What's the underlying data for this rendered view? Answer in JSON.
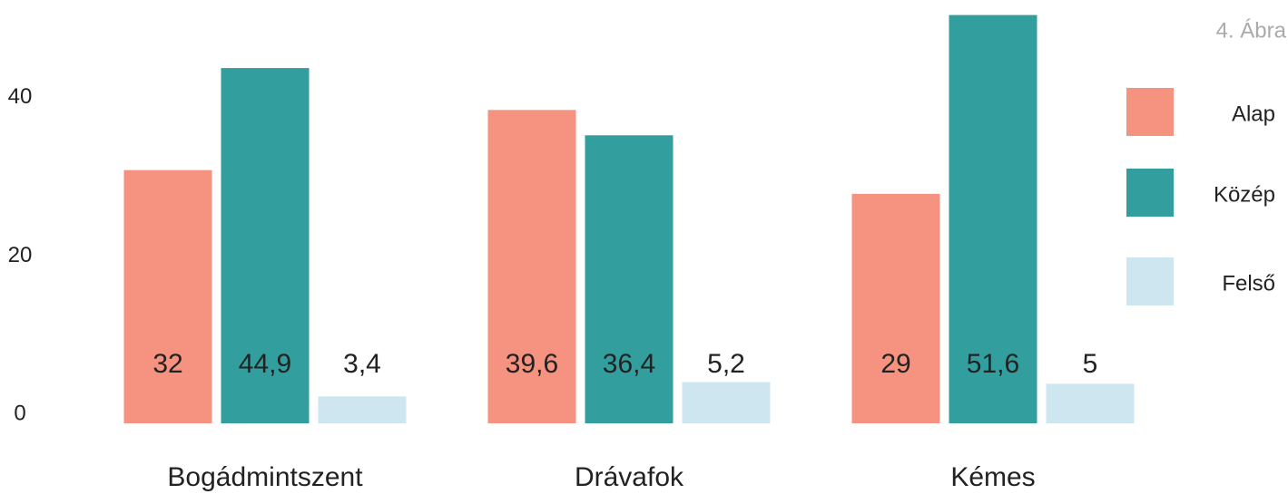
{
  "chart_data": {
    "type": "bar",
    "title": "4. Ábra",
    "categories": [
      "Bogádmintszent",
      "Drávafok",
      "Kémes"
    ],
    "series": [
      {
        "name": "Alap",
        "color": "#f59280",
        "values": [
          32,
          39.6,
          29
        ],
        "value_labels": [
          "32",
          "39,6",
          "29"
        ]
      },
      {
        "name": "Közép",
        "color": "#339e9e",
        "values": [
          44.9,
          36.4,
          51.6
        ],
        "value_labels": [
          "44,9",
          "36,4",
          "51,6"
        ]
      },
      {
        "name": "Felső",
        "color": "#cde6ef",
        "values": [
          3.4,
          5.2,
          5
        ],
        "value_labels": [
          "3,4",
          "5,2",
          "5"
        ]
      }
    ],
    "ylim": [
      0,
      53.5
    ],
    "yticks": [
      0,
      20,
      40
    ],
    "grid": false,
    "legend": "right"
  }
}
